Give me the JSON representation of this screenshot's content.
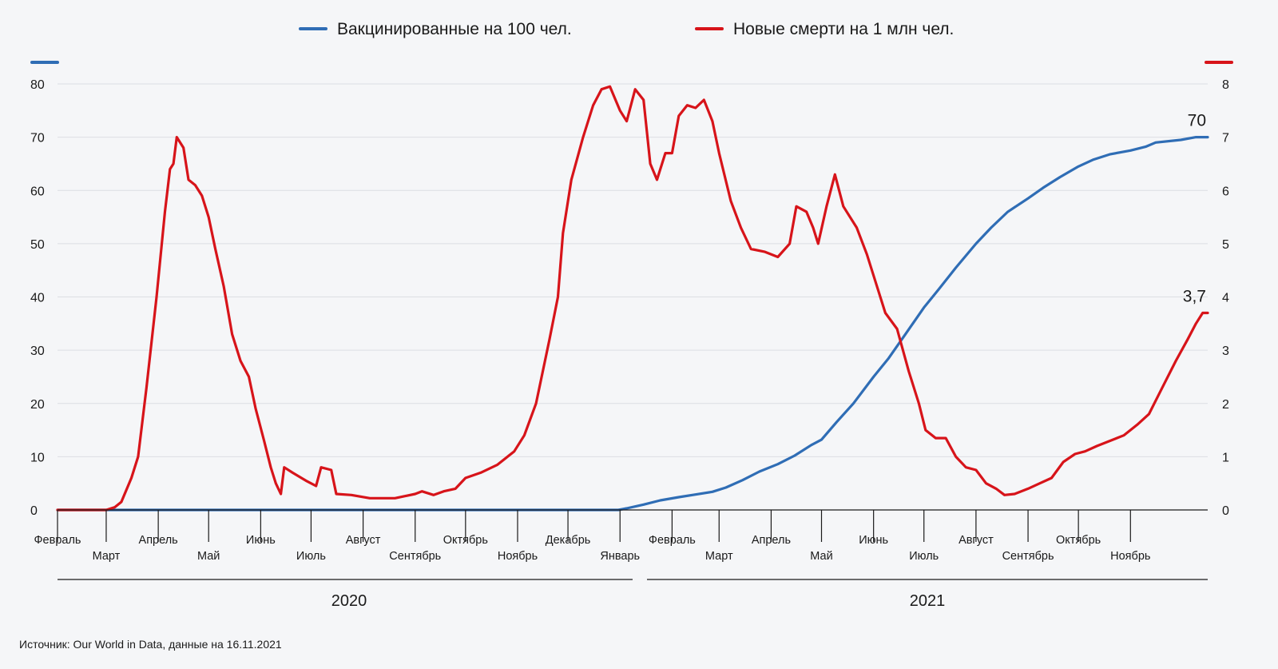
{
  "chart_data": {
    "type": "line",
    "x_axis": {
      "ticks": [
        "Февраль",
        "Март",
        "Апрель",
        "Май",
        "Июнь",
        "Июль",
        "Август",
        "Сентябрь",
        "Октябрь",
        "Ноябрь",
        "Декабрь",
        "Январь",
        "Февраль",
        "Март",
        "Апрель",
        "Май",
        "Июнь",
        "Июль",
        "Август",
        "Сентябрь",
        "Октябрь",
        "Ноябрь"
      ],
      "years": [
        "2020",
        "2021"
      ]
    },
    "y_left": {
      "ylim": [
        0,
        80
      ],
      "ticks": [
        "0",
        "10",
        "20",
        "30",
        "40",
        "50",
        "60",
        "70",
        "80"
      ]
    },
    "y_right": {
      "ylim": [
        0,
        8
      ],
      "ticks": [
        "0",
        "1",
        "2",
        "3",
        "4",
        "5",
        "6",
        "7",
        "8"
      ]
    },
    "grid": true,
    "legend_position": "top-center",
    "series": [
      {
        "name": "Вакцинированные на 100 чел.",
        "axis": "left",
        "color": "#2f6db5",
        "end_label": "70",
        "points": [
          [
            "2020-02-01",
            0
          ],
          [
            "2020-12-31",
            0
          ],
          [
            "2021-01-05",
            0.3
          ],
          [
            "2021-01-15",
            1
          ],
          [
            "2021-01-25",
            1.8
          ],
          [
            "2021-02-05",
            2.4
          ],
          [
            "2021-02-15",
            2.9
          ],
          [
            "2021-02-25",
            3.4
          ],
          [
            "2021-03-05",
            4.2
          ],
          [
            "2021-03-15",
            5.6
          ],
          [
            "2021-03-25",
            7.2
          ],
          [
            "2021-04-05",
            8.6
          ],
          [
            "2021-04-15",
            10.2
          ],
          [
            "2021-04-25",
            12.2
          ],
          [
            "2021-05-01",
            13.2
          ],
          [
            "2021-05-10",
            16.5
          ],
          [
            "2021-05-20",
            20
          ],
          [
            "2021-06-01",
            25
          ],
          [
            "2021-06-10",
            28.5
          ],
          [
            "2021-06-20",
            33
          ],
          [
            "2021-07-01",
            38
          ],
          [
            "2021-07-10",
            41.5
          ],
          [
            "2021-07-20",
            45.5
          ],
          [
            "2021-08-01",
            50
          ],
          [
            "2021-08-10",
            53
          ],
          [
            "2021-08-20",
            56
          ],
          [
            "2021-09-01",
            58.5
          ],
          [
            "2021-09-10",
            60.5
          ],
          [
            "2021-09-20",
            62.5
          ],
          [
            "2021-10-01",
            64.5
          ],
          [
            "2021-10-10",
            65.8
          ],
          [
            "2021-10-20",
            66.8
          ],
          [
            "2021-11-01",
            67.5
          ],
          [
            "2021-11-10",
            68.2
          ],
          [
            "2021-11-16",
            69
          ],
          [
            "2021-12-01",
            69.5
          ],
          [
            "2021-12-10",
            70
          ],
          [
            "2021-12-17",
            70
          ]
        ]
      },
      {
        "name": "Новые смерти на 1 млн чел.",
        "axis": "right",
        "color": "#d7141a",
        "end_label": "3,7",
        "points": [
          [
            "2020-02-01",
            0
          ],
          [
            "2020-03-01",
            0
          ],
          [
            "2020-03-06",
            0.05
          ],
          [
            "2020-03-10",
            0.15
          ],
          [
            "2020-03-16",
            0.6
          ],
          [
            "2020-03-20",
            1.0
          ],
          [
            "2020-03-25",
            2.3
          ],
          [
            "2020-03-31",
            4.0
          ],
          [
            "2020-04-05",
            5.6
          ],
          [
            "2020-04-08",
            6.4
          ],
          [
            "2020-04-10",
            6.5
          ],
          [
            "2020-04-12",
            7.0
          ],
          [
            "2020-04-16",
            6.8
          ],
          [
            "2020-04-19",
            6.2
          ],
          [
            "2020-04-23",
            6.1
          ],
          [
            "2020-04-27",
            5.9
          ],
          [
            "2020-05-01",
            5.5
          ],
          [
            "2020-05-05",
            4.9
          ],
          [
            "2020-05-10",
            4.2
          ],
          [
            "2020-05-15",
            3.3
          ],
          [
            "2020-05-20",
            2.8
          ],
          [
            "2020-05-25",
            2.5
          ],
          [
            "2020-05-29",
            1.9
          ],
          [
            "2020-06-03",
            1.3
          ],
          [
            "2020-06-07",
            0.8
          ],
          [
            "2020-06-10",
            0.5
          ],
          [
            "2020-06-13",
            0.3
          ],
          [
            "2020-06-15",
            0.8
          ],
          [
            "2020-06-20",
            0.7
          ],
          [
            "2020-06-28",
            0.55
          ],
          [
            "2020-07-04",
            0.45
          ],
          [
            "2020-07-07",
            0.8
          ],
          [
            "2020-07-13",
            0.75
          ],
          [
            "2020-07-16",
            0.3
          ],
          [
            "2020-07-25",
            0.28
          ],
          [
            "2020-08-05",
            0.22
          ],
          [
            "2020-08-20",
            0.22
          ],
          [
            "2020-09-01",
            0.3
          ],
          [
            "2020-09-05",
            0.35
          ],
          [
            "2020-09-12",
            0.28
          ],
          [
            "2020-09-18",
            0.35
          ],
          [
            "2020-09-25",
            0.4
          ],
          [
            "2020-10-01",
            0.6
          ],
          [
            "2020-10-10",
            0.7
          ],
          [
            "2020-10-20",
            0.85
          ],
          [
            "2020-10-30",
            1.1
          ],
          [
            "2020-11-05",
            1.4
          ],
          [
            "2020-11-12",
            2.0
          ],
          [
            "2020-11-20",
            3.2
          ],
          [
            "2020-11-25",
            4.0
          ],
          [
            "2020-11-28",
            5.2
          ],
          [
            "2020-12-03",
            6.2
          ],
          [
            "2020-12-10",
            7.0
          ],
          [
            "2020-12-16",
            7.6
          ],
          [
            "2020-12-21",
            7.9
          ],
          [
            "2020-12-26",
            7.95
          ],
          [
            "2021-01-01",
            7.5
          ],
          [
            "2021-01-05",
            7.3
          ],
          [
            "2021-01-10",
            7.9
          ],
          [
            "2021-01-15",
            7.7
          ],
          [
            "2021-01-19",
            6.5
          ],
          [
            "2021-01-23",
            6.2
          ],
          [
            "2021-01-28",
            6.7
          ],
          [
            "2021-02-01",
            6.7
          ],
          [
            "2021-02-05",
            7.4
          ],
          [
            "2021-02-10",
            7.6
          ],
          [
            "2021-02-15",
            7.55
          ],
          [
            "2021-02-20",
            7.7
          ],
          [
            "2021-02-25",
            7.3
          ],
          [
            "2021-03-01",
            6.7
          ],
          [
            "2021-03-08",
            5.8
          ],
          [
            "2021-03-14",
            5.3
          ],
          [
            "2021-03-20",
            4.9
          ],
          [
            "2021-03-28",
            4.85
          ],
          [
            "2021-04-05",
            4.75
          ],
          [
            "2021-04-12",
            5.0
          ],
          [
            "2021-04-16",
            5.7
          ],
          [
            "2021-04-22",
            5.6
          ],
          [
            "2021-04-26",
            5.3
          ],
          [
            "2021-04-29",
            5.0
          ],
          [
            "2021-05-04",
            5.7
          ],
          [
            "2021-05-09",
            6.3
          ],
          [
            "2021-05-14",
            5.7
          ],
          [
            "2021-05-22",
            5.3
          ],
          [
            "2021-05-28",
            4.8
          ],
          [
            "2021-06-03",
            4.2
          ],
          [
            "2021-06-08",
            3.7
          ],
          [
            "2021-06-15",
            3.4
          ],
          [
            "2021-06-22",
            2.6
          ],
          [
            "2021-06-28",
            2.0
          ],
          [
            "2021-07-02",
            1.5
          ],
          [
            "2021-07-08",
            1.35
          ],
          [
            "2021-07-14",
            1.35
          ],
          [
            "2021-07-20",
            1.0
          ],
          [
            "2021-07-26",
            0.8
          ],
          [
            "2021-08-01",
            0.75
          ],
          [
            "2021-08-07",
            0.5
          ],
          [
            "2021-08-13",
            0.4
          ],
          [
            "2021-08-18",
            0.28
          ],
          [
            "2021-08-24",
            0.3
          ],
          [
            "2021-09-01",
            0.4
          ],
          [
            "2021-09-08",
            0.5
          ],
          [
            "2021-09-15",
            0.6
          ],
          [
            "2021-09-22",
            0.9
          ],
          [
            "2021-09-29",
            1.05
          ],
          [
            "2021-10-05",
            1.1
          ],
          [
            "2021-10-12",
            1.2
          ],
          [
            "2021-10-20",
            1.3
          ],
          [
            "2021-10-28",
            1.4
          ],
          [
            "2021-11-05",
            1.6
          ],
          [
            "2021-11-12",
            1.8
          ],
          [
            "2021-11-20",
            2.3
          ],
          [
            "2021-11-28",
            2.8
          ],
          [
            "2021-12-05",
            3.2
          ],
          [
            "2021-12-10",
            3.5
          ],
          [
            "2021-12-14",
            3.7
          ],
          [
            "2021-12-17",
            3.7
          ]
        ]
      }
    ],
    "source": "Источник: Our World in Data, данные на 16.11.2021"
  }
}
